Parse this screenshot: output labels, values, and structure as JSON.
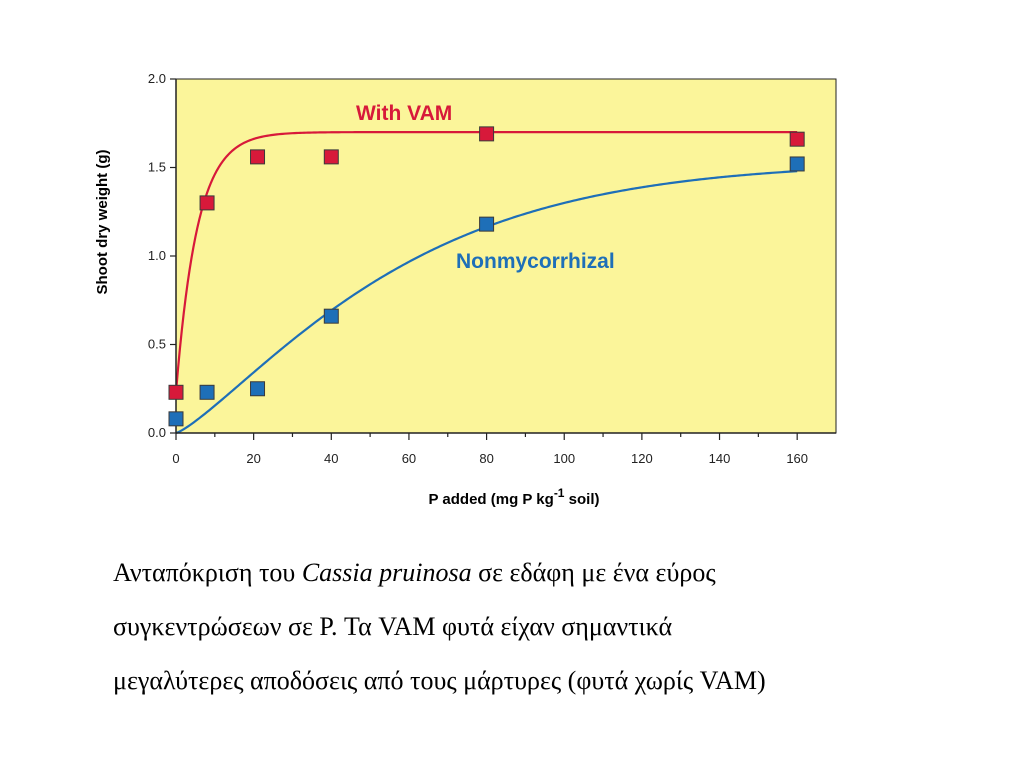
{
  "chart_data": {
    "type": "scatter",
    "xlabel": "P added (mg P kg",
    "xlabel_sup": "-1",
    "xlabel_tail": " soil)",
    "ylabel": "Shoot dry weight (g)",
    "xlim": [
      0,
      170
    ],
    "ylim": [
      0,
      2.0
    ],
    "x_ticks": [
      0,
      20,
      40,
      60,
      80,
      100,
      120,
      140,
      160
    ],
    "y_ticks": [
      "0.0",
      "0.5",
      "1.0",
      "1.5",
      "2.0"
    ],
    "background": "#fbf59a",
    "grid": false,
    "series": [
      {
        "name": "With VAM",
        "color": "#d7193a",
        "marker": "square",
        "points": [
          [
            0,
            0.23
          ],
          [
            8,
            1.3
          ],
          [
            21,
            1.56
          ],
          [
            40,
            1.56
          ],
          [
            80,
            1.69
          ],
          [
            160,
            1.66
          ]
        ],
        "curve": "saturating, plateau 1.70"
      },
      {
        "name": "Nonmycorrhizal",
        "color": "#1e6fb8",
        "marker": "square",
        "points": [
          [
            0,
            0.08
          ],
          [
            8,
            0.23
          ],
          [
            21,
            0.25
          ],
          [
            40,
            0.66
          ],
          [
            80,
            1.18
          ],
          [
            160,
            1.52
          ]
        ],
        "curve": "sigmoid-saturating, plateau ~1.53"
      }
    ]
  },
  "caption": {
    "line1_before": "Ανταπόκριση του ",
    "species": "Cassia pruinosa",
    "line1_after": " σε εδάφη με ένα εύρος",
    "line2": "συγκεντρώσεων σε P. Τα VAM φυτά είχαν σημαντικά",
    "line3": "μεγαλύτερες αποδόσεις από τους μάρτυρες (φυτά χωρίς VAM)"
  }
}
